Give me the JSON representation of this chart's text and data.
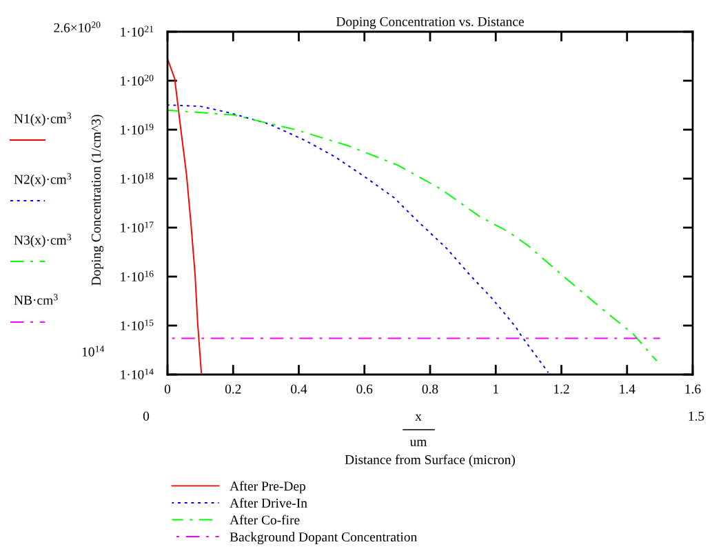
{
  "chart_data": {
    "type": "line",
    "title": "Doping Concentration vs. Distance",
    "xlabel": "Distance from Surface (micron)",
    "ylabel": "Doping Concentration (1/cm^3)",
    "log": "y",
    "xlim": [
      0,
      1.6
    ],
    "xticks": [
      0,
      0.2,
      0.4,
      0.6,
      0.8,
      1,
      1.2,
      1.4,
      1.6
    ],
    "ylim": [
      100000000000000.0,
      1e+21
    ],
    "yticks": [
      {
        "value": 100000000000000.0,
        "label": "1·10$^{14}$"
      },
      {
        "value": 1000000000000000.0,
        "label": "1·10$^{15}$"
      },
      {
        "value": 1e+16,
        "label": "1·10$^{16}$"
      },
      {
        "value": 1e+17,
        "label": "1·10$^{17}$"
      },
      {
        "value": 1e+18,
        "label": "1·10$^{18}$"
      },
      {
        "value": 1e+19,
        "label": "1·10$^{19}$"
      },
      {
        "value": 1e+20,
        "label": "1·10$^{20}$"
      },
      {
        "value": 1e+21,
        "label": "1·10$^{21}$"
      }
    ],
    "grid": false,
    "legend": "bottom",
    "marker": "none",
    "series": [
      {
        "name": "After Pre-Dep",
        "color": "#ff0000",
        "line_style": "solid",
        "x": [
          0,
          0.022,
          0.04,
          0.058,
          0.072,
          0.084,
          0.092,
          0.103
        ],
        "values": [
          2.8e+20,
          1.1e+20,
          1.1e+19,
          1.2e+18,
          1.1e+17,
          1.1e+16,
          1100000000000000.0,
          110000000000000.0
        ]
      },
      {
        "name": "After Drive-In",
        "color": "#0000ff",
        "line_style": "dotted",
        "x": [
          0,
          0.1,
          0.19,
          0.31,
          0.42,
          0.51,
          0.6,
          0.69,
          0.76,
          0.85,
          0.92,
          0.99,
          1.06,
          1.08,
          1.16
        ],
        "values": [
          3.2e+19,
          3e+19,
          2.2e+19,
          1.3e+19,
          6e+18,
          2.8e+18,
          1.1e+18,
          4.1e+17,
          1.4e+17,
          3.8e+16,
          1.1e+16,
          3500000000000000.0,
          950000000000000.0,
          590000000000000.0,
          110000000000000.0
        ]
      },
      {
        "name": "After Co-fire",
        "color": "#00ff00",
        "line_style": "dashed",
        "x": [
          0,
          0.2,
          0.39,
          0.55,
          0.7,
          0.83,
          0.95,
          1.04,
          1.1,
          1.2,
          1.32,
          1.42,
          1.49
        ],
        "values": [
          2.5e+19,
          2e+19,
          1e+19,
          4.7e+18,
          1.9e+18,
          6.3e+17,
          1.7e+17,
          8.1e+16,
          4.2e+16,
          1.1e+16,
          2300000000000000.0,
          660000000000000.0,
          190000000000000.0
        ]
      },
      {
        "name": "Background Dopant Concentration",
        "color": "#ff00ff",
        "line_style": "dashed",
        "x": [
          0,
          1.5
        ],
        "values": [
          550000000000000.0,
          550000000000000.0
        ]
      }
    ],
    "annotations": [
      "2.6×10$^{20}$",
      "10$^{14}$",
      "0",
      "1.5",
      "x",
      "um",
      "N1(x)·cm$^{3}$",
      "N2(x)·cm$^{3}$",
      "N3(x)·cm$^{3}$",
      "NB·cm$^{3}$"
    ]
  }
}
